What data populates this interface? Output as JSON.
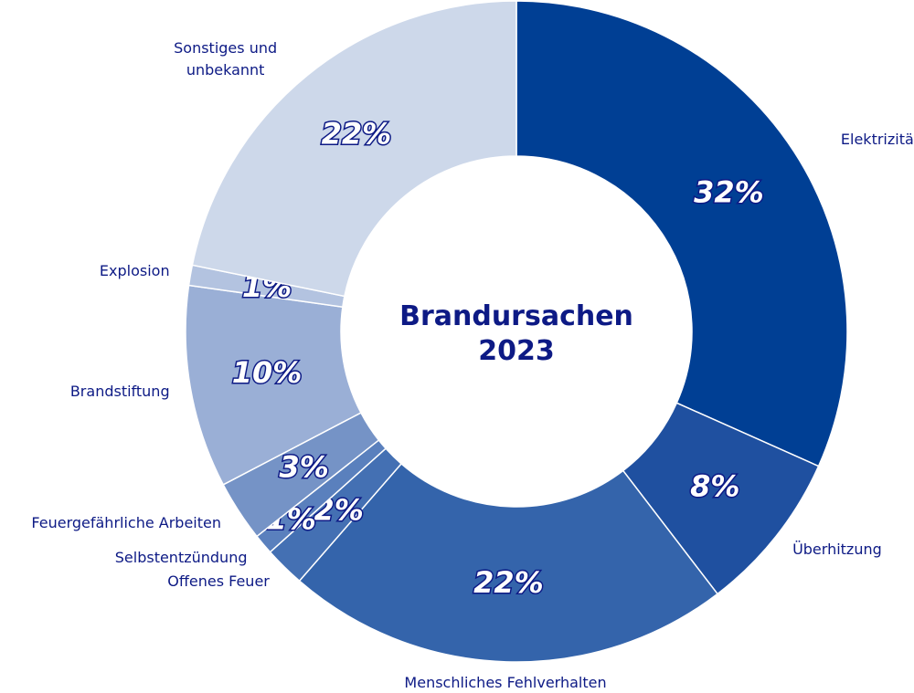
{
  "chart_data": {
    "type": "pie",
    "title": "Brandursachen 2023",
    "categories": [
      "Elektrizität",
      "Überhitzung",
      "Menschliches Fehlverhalten",
      "Offenes Feuer",
      "Selbstentzündung",
      "Feuergefährliche Arbeiten",
      "Brandstiftung",
      "Explosion",
      "Sonstiges und unbekannt"
    ],
    "values": [
      32,
      8,
      22,
      2,
      1,
      3,
      10,
      1,
      22
    ],
    "value_labels": [
      "32%",
      "8%",
      "22%",
      "2%",
      "1%",
      "3%",
      "10%",
      "1%",
      "22%"
    ],
    "colors": [
      "#003f94",
      "#1f50a0",
      "#3464ab",
      "#4470b3",
      "#5a80bd",
      "#7593c6",
      "#9aafd6",
      "#b3c3e0",
      "#cdd8ea"
    ]
  }
}
